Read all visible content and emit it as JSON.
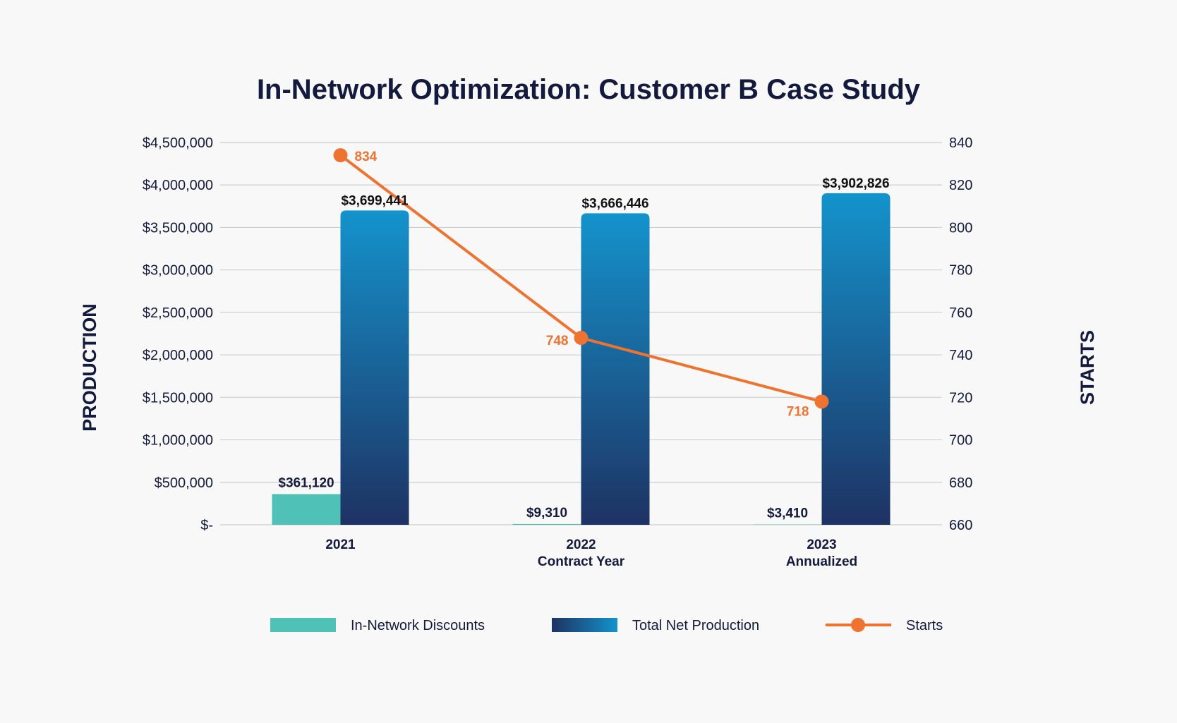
{
  "colors": {
    "background": "#f8f8f8",
    "title": "#131a3d",
    "discounts": "#4fc1b6",
    "production_top": "#1493cc",
    "production_bottom": "#1e3263",
    "starts": "#ee7330",
    "grid": "#cfcfcf",
    "tick_text": "#131a3d"
  },
  "chart_data": {
    "type": "bar",
    "title": "In-Network Optimization: Customer B Case Study",
    "ylabel": "PRODUCTION",
    "y2label": "STARTS",
    "categories": [
      [
        "2021"
      ],
      [
        "2022",
        "Contract Year"
      ],
      [
        "2023",
        "Annualized"
      ]
    ],
    "ylim": [
      0,
      4500000
    ],
    "y2lim": [
      660,
      840
    ],
    "y_ticks": [
      "$-",
      "$500,000",
      "$1,000,000",
      "$1,500,000",
      "$2,000,000",
      "$2,500,000",
      "$3,000,000",
      "$3,500,000",
      "$4,000,000",
      "$4,500,000"
    ],
    "y2_ticks": [
      "660",
      "680",
      "700",
      "720",
      "740",
      "760",
      "780",
      "800",
      "820",
      "840"
    ],
    "grid": true,
    "legend_position": "bottom",
    "series": [
      {
        "name": "In-Network Discounts",
        "kind": "bar",
        "axis": "left",
        "values": [
          361120,
          9310,
          3410
        ],
        "labels": [
          "$361,120",
          "$9,310",
          "$3,410"
        ]
      },
      {
        "name": "Total Net Production",
        "kind": "bar",
        "axis": "left",
        "values": [
          3699441,
          3666446,
          3902826
        ],
        "labels": [
          "$3,699,441",
          "$3,666,446",
          "$3,902,826"
        ]
      },
      {
        "name": "Starts",
        "kind": "line",
        "axis": "right",
        "values": [
          834,
          748,
          718
        ],
        "labels": [
          "834",
          "748",
          "718"
        ]
      }
    ]
  }
}
